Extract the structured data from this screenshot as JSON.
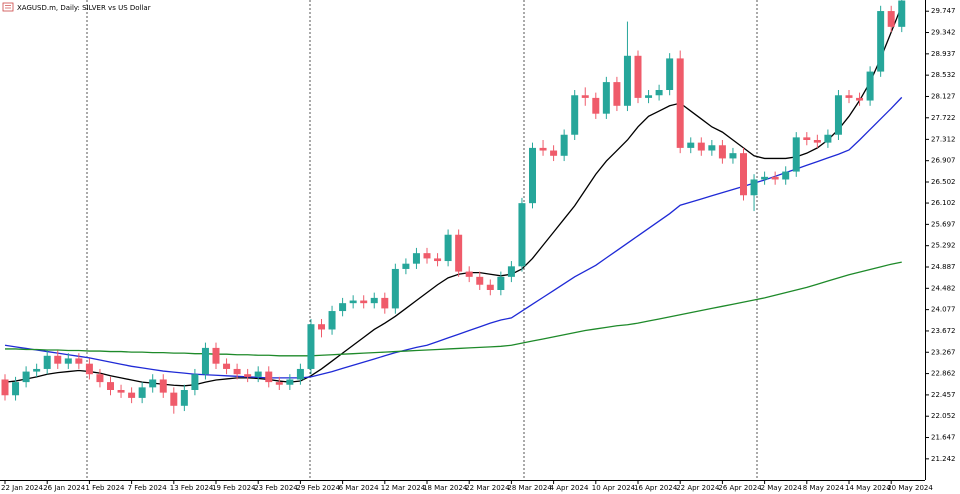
{
  "chart_data": {
    "type": "candlestick",
    "title": "XAGUSD.m, Daily: SILVER vs US Dollar",
    "categories": [
      "22 Jan 2024",
      null,
      null,
      null,
      "26 Jan 2024",
      null,
      null,
      null,
      "1 Feb 2024",
      null,
      null,
      null,
      "7 Feb 2024",
      null,
      null,
      null,
      "13 Feb 2024",
      null,
      null,
      null,
      "19 Feb 2024",
      null,
      null,
      null,
      "23 Feb 2024",
      null,
      null,
      null,
      "29 Feb 2024",
      null,
      null,
      null,
      "6 Mar 2024",
      null,
      null,
      null,
      "12 Mar 2024",
      null,
      null,
      null,
      "18 Mar 2024",
      null,
      null,
      null,
      "22 Mar 2024",
      null,
      null,
      null,
      "28 Mar 2024",
      null,
      null,
      null,
      "4 Apr 2024",
      null,
      null,
      null,
      "10 Apr 2024",
      null,
      null,
      null,
      "16 Apr 2024",
      null,
      null,
      null,
      "22 Apr 2024",
      null,
      null,
      null,
      "26 Apr 2024",
      null,
      null,
      null,
      "2 May 2024",
      null,
      null,
      null,
      "8 May 2024",
      null,
      null,
      null,
      "14 May 2024",
      null,
      null,
      null,
      "20 May 2024",
      null
    ],
    "open": [
      22.75,
      22.45,
      22.7,
      22.9,
      22.95,
      23.2,
      23.05,
      23.15,
      23.05,
      22.85,
      22.7,
      22.55,
      22.5,
      22.4,
      22.6,
      22.75,
      22.5,
      22.25,
      22.55,
      22.85,
      23.35,
      23.05,
      22.95,
      22.85,
      22.8,
      22.9,
      22.7,
      22.65,
      22.75,
      22.95,
      23.8,
      23.7,
      24.05,
      24.2,
      24.25,
      24.2,
      24.3,
      24.1,
      24.85,
      24.95,
      25.15,
      25.05,
      25.0,
      25.5,
      24.8,
      24.7,
      24.55,
      24.45,
      24.7,
      24.9,
      26.1,
      27.15,
      27.1,
      27.0,
      27.4,
      28.15,
      28.1,
      27.8,
      28.4,
      27.95,
      28.9,
      28.1,
      28.15,
      28.25,
      28.85,
      27.15,
      27.25,
      27.1,
      27.2,
      26.95,
      27.05,
      26.25,
      26.55,
      26.6,
      26.55,
      26.7,
      27.35,
      27.3,
      27.25,
      27.4,
      28.15,
      28.1,
      28.05,
      28.6,
      29.75,
      29.45
    ],
    "high": [
      22.85,
      22.8,
      23.0,
      23.05,
      23.3,
      23.3,
      23.25,
      23.25,
      23.15,
      22.95,
      22.8,
      22.65,
      22.6,
      22.7,
      22.85,
      22.85,
      22.6,
      22.65,
      22.95,
      23.45,
      23.45,
      23.15,
      23.05,
      22.95,
      23.0,
      23.0,
      22.8,
      22.85,
      23.05,
      23.9,
      23.9,
      24.15,
      24.3,
      24.35,
      24.35,
      24.4,
      24.4,
      24.95,
      25.05,
      25.25,
      25.25,
      25.15,
      25.6,
      25.6,
      24.9,
      24.8,
      24.65,
      24.8,
      25.0,
      26.2,
      27.25,
      27.3,
      27.2,
      27.5,
      28.25,
      28.3,
      28.2,
      28.5,
      28.5,
      29.55,
      29.0,
      28.25,
      28.35,
      28.95,
      29.0,
      27.35,
      27.35,
      27.3,
      27.3,
      27.15,
      27.15,
      26.65,
      26.7,
      26.7,
      26.8,
      27.45,
      27.45,
      27.4,
      27.5,
      28.25,
      28.25,
      28.2,
      28.7,
      29.85,
      29.85,
      30.05
    ],
    "low": [
      22.35,
      22.35,
      22.6,
      22.8,
      22.85,
      22.95,
      22.95,
      22.95,
      22.75,
      22.6,
      22.45,
      22.4,
      22.3,
      22.3,
      22.5,
      22.4,
      22.1,
      22.15,
      22.45,
      22.75,
      22.95,
      22.85,
      22.75,
      22.7,
      22.7,
      22.6,
      22.55,
      22.55,
      22.65,
      22.85,
      23.55,
      23.6,
      23.95,
      24.1,
      24.1,
      24.1,
      24.0,
      24.0,
      24.75,
      24.85,
      24.95,
      24.9,
      24.9,
      24.7,
      24.6,
      24.45,
      24.35,
      24.35,
      24.6,
      24.8,
      26.0,
      27.0,
      26.9,
      26.9,
      27.3,
      27.95,
      27.7,
      27.7,
      27.85,
      27.85,
      28.0,
      28.0,
      28.05,
      28.15,
      27.05,
      27.05,
      27.0,
      27.0,
      26.85,
      26.85,
      26.15,
      25.95,
      26.45,
      26.45,
      26.45,
      26.6,
      27.2,
      27.15,
      27.15,
      27.3,
      28.0,
      27.95,
      27.95,
      28.5,
      29.35,
      29.35
    ],
    "close": [
      22.45,
      22.7,
      22.9,
      22.95,
      23.2,
      23.05,
      23.15,
      23.05,
      22.85,
      22.7,
      22.55,
      22.5,
      22.4,
      22.6,
      22.75,
      22.5,
      22.25,
      22.55,
      22.85,
      23.35,
      23.05,
      22.95,
      22.85,
      22.8,
      22.9,
      22.7,
      22.65,
      22.75,
      22.95,
      23.8,
      23.7,
      24.05,
      24.2,
      24.25,
      24.2,
      24.3,
      24.1,
      24.85,
      24.95,
      25.15,
      25.05,
      25.0,
      25.5,
      24.8,
      24.7,
      24.55,
      24.45,
      24.7,
      24.9,
      26.1,
      27.15,
      27.1,
      27.0,
      27.4,
      28.15,
      28.1,
      27.8,
      28.4,
      27.95,
      28.9,
      28.1,
      28.15,
      28.25,
      28.85,
      27.15,
      27.25,
      27.1,
      27.2,
      26.95,
      27.05,
      26.25,
      26.55,
      26.6,
      26.55,
      26.7,
      27.35,
      27.3,
      27.25,
      27.4,
      28.15,
      28.1,
      28.05,
      28.6,
      29.75,
      29.45,
      29.95
    ],
    "up_color": "#26a69a",
    "down_color": "#ef5b6a",
    "lines": [
      {
        "color": "#000000",
        "values": [
          22.7,
          22.72,
          22.76,
          22.8,
          22.85,
          22.88,
          22.9,
          22.92,
          22.9,
          22.87,
          22.82,
          22.78,
          22.74,
          22.7,
          22.68,
          22.66,
          22.64,
          22.63,
          22.65,
          22.7,
          22.74,
          22.76,
          22.78,
          22.78,
          22.77,
          22.75,
          22.72,
          22.7,
          22.72,
          22.82,
          22.95,
          23.1,
          23.25,
          23.4,
          23.55,
          23.7,
          23.82,
          23.95,
          24.1,
          24.25,
          24.4,
          24.55,
          24.68,
          24.75,
          24.78,
          24.78,
          24.75,
          24.72,
          24.75,
          24.85,
          25.05,
          25.3,
          25.55,
          25.8,
          26.05,
          26.35,
          26.65,
          26.9,
          27.1,
          27.3,
          27.55,
          27.75,
          27.85,
          27.95,
          28.0,
          27.85,
          27.7,
          27.55,
          27.45,
          27.3,
          27.15,
          27.0,
          26.95,
          26.95,
          26.95,
          26.98,
          27.05,
          27.15,
          27.3,
          27.5,
          27.75,
          28.05,
          28.4,
          28.85,
          29.35,
          29.85
        ]
      },
      {
        "color": "#1f2ad6",
        "values": [
          23.4,
          23.37,
          23.34,
          23.31,
          23.28,
          23.25,
          23.22,
          23.19,
          23.16,
          23.12,
          23.08,
          23.04,
          23.0,
          22.97,
          22.94,
          22.91,
          22.89,
          22.87,
          22.85,
          22.84,
          22.83,
          22.82,
          22.81,
          22.8,
          22.79,
          22.78,
          22.78,
          22.78,
          22.78,
          22.8,
          22.85,
          22.9,
          22.96,
          23.02,
          23.08,
          23.14,
          23.2,
          23.26,
          23.31,
          23.36,
          23.4,
          23.47,
          23.54,
          23.61,
          23.68,
          23.75,
          23.82,
          23.88,
          23.92,
          24.05,
          24.18,
          24.31,
          24.44,
          24.57,
          24.7,
          24.81,
          24.92,
          25.06,
          25.2,
          25.34,
          25.48,
          25.62,
          25.76,
          25.9,
          26.06,
          26.12,
          26.18,
          26.24,
          26.3,
          26.36,
          26.42,
          26.48,
          26.54,
          26.61,
          26.68,
          26.75,
          26.82,
          26.89,
          26.96,
          27.03,
          27.11,
          27.3,
          27.5,
          27.7,
          27.9,
          28.11
        ]
      },
      {
        "color": "#1e8a2a",
        "values": [
          23.33,
          23.33,
          23.32,
          23.32,
          23.31,
          23.31,
          23.3,
          23.3,
          23.29,
          23.29,
          23.28,
          23.28,
          23.27,
          23.27,
          23.26,
          23.26,
          23.25,
          23.25,
          23.24,
          23.24,
          23.23,
          23.23,
          23.22,
          23.22,
          23.21,
          23.21,
          23.2,
          23.2,
          23.2,
          23.2,
          23.21,
          23.22,
          23.23,
          23.24,
          23.25,
          23.26,
          23.27,
          23.28,
          23.29,
          23.3,
          23.31,
          23.32,
          23.33,
          23.34,
          23.35,
          23.36,
          23.37,
          23.38,
          23.4,
          23.44,
          23.48,
          23.52,
          23.56,
          23.6,
          23.64,
          23.68,
          23.71,
          23.74,
          23.77,
          23.79,
          23.82,
          23.86,
          23.9,
          23.94,
          23.98,
          24.02,
          24.06,
          24.1,
          24.14,
          24.18,
          24.22,
          24.26,
          24.3,
          24.35,
          24.4,
          24.45,
          24.5,
          24.56,
          24.62,
          24.68,
          24.74,
          24.79,
          24.84,
          24.89,
          24.94,
          24.98
        ]
      }
    ],
    "ylim": [
      20.84,
      29.96
    ],
    "yticks": [
      29.747,
      29.342,
      28.937,
      28.532,
      28.127,
      27.722,
      27.312,
      26.907,
      26.502,
      26.102,
      25.697,
      25.292,
      24.887,
      24.482,
      24.077,
      23.672,
      23.267,
      22.862,
      22.457,
      22.052,
      21.647,
      21.242
    ]
  }
}
